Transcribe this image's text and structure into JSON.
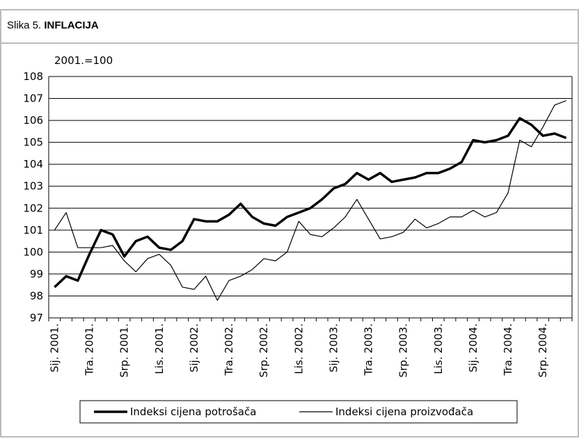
{
  "header": {
    "label": "Slika 5.",
    "title": "INFLACIJA"
  },
  "chart_data": {
    "type": "line",
    "unit_label": "2001.=100",
    "categories": [
      "Sij. 2001.",
      null,
      null,
      "Tra. 2001.",
      null,
      null,
      "Srp. 2001.",
      null,
      null,
      "Lis. 2001.",
      null,
      null,
      "Sij. 2002.",
      null,
      null,
      "Tra. 2002.",
      null,
      null,
      "Srp. 2002.",
      null,
      null,
      "Lis. 2002.",
      null,
      null,
      "Sij. 2003.",
      null,
      null,
      "Tra. 2003.",
      null,
      null,
      "Srp. 2003.",
      null,
      null,
      "Lis. 2003.",
      null,
      null,
      "Sij. 2004.",
      null,
      null,
      "Tra. 2004.",
      null,
      null,
      "Srp. 2004.",
      null,
      null
    ],
    "series": [
      {
        "name": "Indeksi cijena potrošača",
        "color": "#000000",
        "width": 3.5,
        "values": [
          98.4,
          98.9,
          98.7,
          99.9,
          101.0,
          100.8,
          99.8,
          100.5,
          100.7,
          100.2,
          100.1,
          100.5,
          101.5,
          101.4,
          101.4,
          101.7,
          102.2,
          101.6,
          101.3,
          101.2,
          101.6,
          101.8,
          102.0,
          102.4,
          102.9,
          103.1,
          103.6,
          103.3,
          103.6,
          103.2,
          103.3,
          103.4,
          103.6,
          103.6,
          103.8,
          104.1,
          105.1,
          105.0,
          105.1,
          105.3,
          106.1,
          105.8,
          105.3,
          105.4,
          105.2
        ]
      },
      {
        "name": "Indeksi cijena proizvođača",
        "color": "#000000",
        "width": 1.2,
        "values": [
          101.0,
          101.8,
          100.2,
          100.2,
          100.2,
          100.3,
          99.6,
          99.1,
          99.7,
          99.9,
          99.4,
          98.4,
          98.3,
          98.9,
          97.8,
          98.7,
          98.9,
          99.2,
          99.7,
          99.6,
          100.0,
          101.4,
          100.8,
          100.7,
          101.1,
          101.6,
          102.4,
          101.5,
          100.6,
          100.7,
          100.9,
          101.5,
          101.1,
          101.3,
          101.6,
          101.6,
          101.9,
          101.6,
          101.8,
          102.7,
          105.1,
          104.8,
          105.7,
          106.7,
          106.9
        ]
      }
    ],
    "ylim": [
      97,
      108
    ],
    "yticks": [
      97,
      98,
      99,
      100,
      101,
      102,
      103,
      104,
      105,
      106,
      107,
      108
    ],
    "grid": true
  }
}
